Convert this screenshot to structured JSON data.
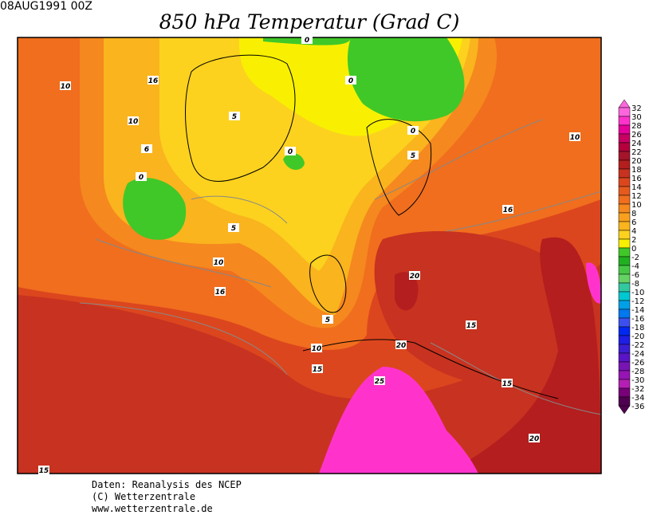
{
  "header": {
    "date": "08AUG1991 00Z",
    "title": "850 hPa Temperatur (Grad C)"
  },
  "contour_labels": [
    "0",
    "10",
    "16",
    "10",
    "5",
    "6",
    "0",
    "0",
    "0",
    "0",
    "5",
    "10",
    "16",
    "5",
    "10",
    "16",
    "20",
    "15",
    "5",
    "10",
    "20",
    "15",
    "25",
    "15",
    "20",
    "15"
  ],
  "colorbar": {
    "labels": [
      "32",
      "30",
      "28",
      "26",
      "24",
      "22",
      "20",
      "18",
      "16",
      "14",
      "12",
      "10",
      "8",
      "6",
      "4",
      "2",
      "0",
      "-2",
      "-4",
      "-6",
      "-8",
      "-10",
      "-12",
      "-14",
      "-16",
      "-18",
      "-20",
      "-22",
      "-24",
      "-26",
      "-28",
      "-30",
      "-32",
      "-34",
      "-36"
    ]
  },
  "footer": {
    "lines": [
      "Daten: Reanalysis des NCEP",
      "(C) Wetterzentrale",
      "www.wetterzentrale.de"
    ]
  }
}
